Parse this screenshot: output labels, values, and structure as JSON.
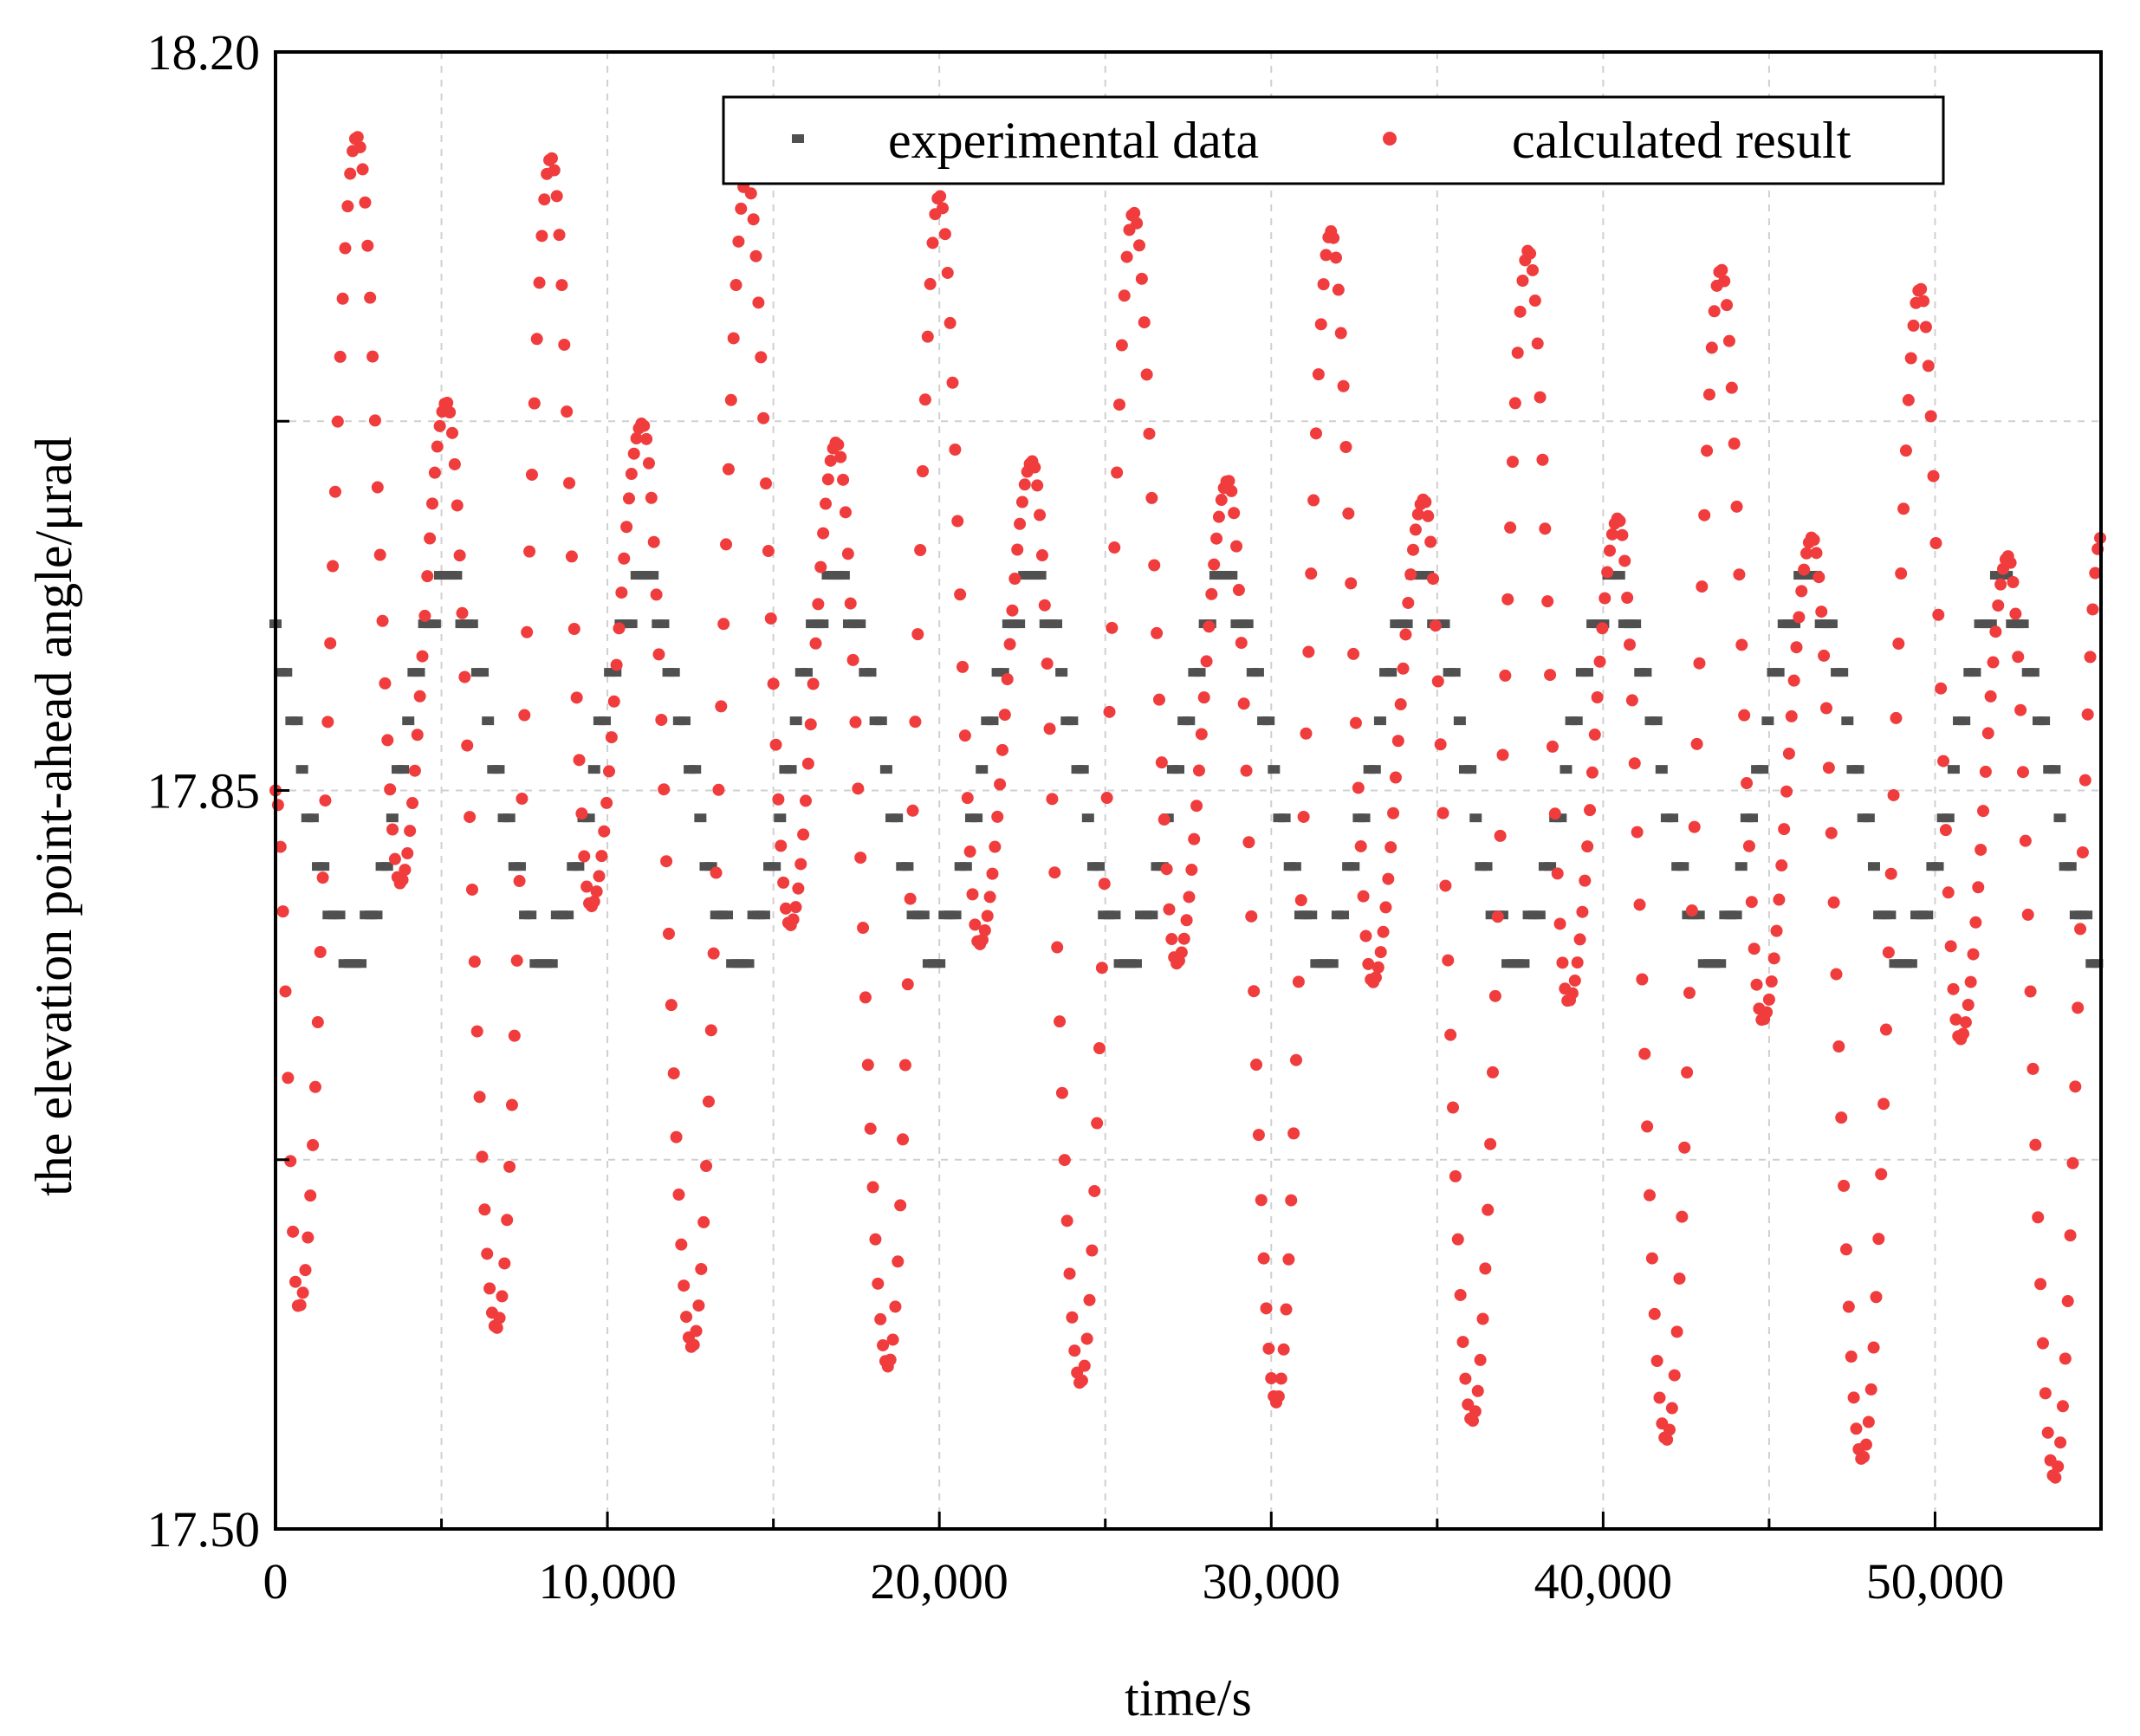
{
  "chart_data": {
    "type": "scatter",
    "title": "",
    "xlabel": "time/s",
    "ylabel": "the elevation point-ahead angle/μrad",
    "xlim": [
      0,
      55000
    ],
    "ylim": [
      17.5,
      18.2
    ],
    "x_ticks": [
      0,
      10000,
      20000,
      30000,
      40000,
      50000
    ],
    "x_tick_labels": [
      "0",
      "10,000",
      "20,000",
      "30,000",
      "40,000",
      "50,000"
    ],
    "y_ticks": [
      17.5,
      17.85,
      18.2
    ],
    "y_tick_labels": [
      "17.50",
      "17.85",
      "18.20"
    ],
    "grid": true,
    "legend_position": "top-right",
    "colors": {
      "experimental": "#505050",
      "calculated": "#f03c3c"
    },
    "series": [
      {
        "name": "experimental data",
        "marker": "square",
        "model": {
          "mean": 17.86,
          "amplitude": 0.085,
          "period": 5850,
          "phase": -2100,
          "quantum": 0.023,
          "sample_step": 160,
          "x_start": 0,
          "x_end": 55000
        }
      },
      {
        "name": "calculated result",
        "marker": "circle",
        "extrema": {
          "x": [
            0,
            700,
            2450,
            3750,
            5150,
            6650,
            8300,
            9500,
            11050,
            12550,
            14200,
            15500,
            16900,
            18450,
            20000,
            21200,
            22800,
            24250,
            25850,
            27150,
            28700,
            30150,
            31800,
            33050,
            34600,
            36050,
            37750,
            38950,
            40450,
            41900,
            43550,
            44800,
            46300,
            47800,
            49550,
            50750,
            52200,
            53600,
            55000
          ],
          "y": [
            17.85,
            17.605,
            18.16,
            17.806,
            18.034,
            17.595,
            18.15,
            17.795,
            18.024,
            17.586,
            18.141,
            17.786,
            18.015,
            17.577,
            18.132,
            17.777,
            18.006,
            17.569,
            18.124,
            17.768,
            17.997,
            17.56,
            18.115,
            17.759,
            17.988,
            17.551,
            18.106,
            17.75,
            17.979,
            17.542,
            18.097,
            17.741,
            17.97,
            17.533,
            18.088,
            17.732,
            17.961,
            17.524,
            17.97
          ]
        },
        "sample_step": 75
      }
    ]
  }
}
